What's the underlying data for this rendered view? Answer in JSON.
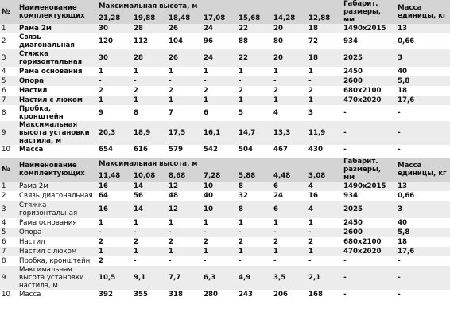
{
  "tables": [
    {
      "header": {
        "num": "№",
        "name": "Наименование комплектующих",
        "height": "Максимальная высота, м",
        "size": "Габарит. размеры, мм",
        "mass": "Масса единицы, кг"
      },
      "heights": [
        "21,28",
        "19,88",
        "18,48",
        "17,08",
        "15,68",
        "14,28",
        "12,88"
      ],
      "rows": [
        [
          "1",
          "Рама 2м",
          "30",
          "28",
          "26",
          "24",
          "22",
          "20",
          "18",
          "1490х2015",
          "13"
        ],
        [
          "2",
          "Связь диагональная",
          "120",
          "112",
          "104",
          "96",
          "88",
          "80",
          "72",
          "934",
          "0,66"
        ],
        [
          "3",
          "Стяжка горизонтальная",
          "30",
          "28",
          "26",
          "24",
          "22",
          "20",
          "18",
          "2025",
          "3"
        ],
        [
          "4",
          "Рама основания",
          "1",
          "1",
          "1",
          "1",
          "1",
          "1",
          "1",
          "2450",
          "40"
        ],
        [
          "5",
          "Опора",
          "-",
          "-",
          "-",
          "-",
          "-",
          "-",
          "-",
          "2600",
          "5,8"
        ],
        [
          "6",
          "Настил",
          "2",
          "2",
          "2",
          "2",
          "2",
          "2",
          "2",
          "680х2100",
          "18"
        ],
        [
          "7",
          "Настил с люком",
          "1",
          "1",
          "1",
          "1",
          "1",
          "1",
          "1",
          "470х2020",
          "17,6"
        ],
        [
          "8",
          "Пробка, кронштейн",
          "9",
          "8",
          "7",
          "6",
          "5",
          "4",
          "3",
          "-",
          "-"
        ],
        [
          "9",
          "Максимальная высота установки настила, м",
          "20,3",
          "18,9",
          "17,5",
          "16,1",
          "14,7",
          "13,3",
          "11,9",
          "-",
          "-"
        ],
        [
          "10",
          "Масса",
          "654",
          "616",
          "579",
          "542",
          "504",
          "467",
          "430",
          "-",
          "-"
        ]
      ]
    },
    {
      "header": {
        "num": "№",
        "name": "Наименование комплектующих",
        "height": "Максимальная высота, м",
        "size": "Габарит. размеры, мм",
        "mass": "Масса единицы, кг"
      },
      "heights": [
        "11,48",
        "10,08",
        "8,68",
        "7,28",
        "5,88",
        "4,48",
        "3,08"
      ],
      "rows": [
        [
          "1",
          "Рама 2м",
          "16",
          "14",
          "12",
          "10",
          "8",
          "6",
          "4",
          "1490х2015",
          "13"
        ],
        [
          "2",
          "Связь диагональная",
          "64",
          "56",
          "48",
          "40",
          "32",
          "24",
          "16",
          "934",
          "0,66"
        ],
        [
          "3",
          "Стяжка горизонтальная",
          "16",
          "14",
          "12",
          "10",
          "8",
          "6",
          "4",
          "2025",
          "3"
        ],
        [
          "4",
          "Рама основания",
          "1",
          "1",
          "1",
          "1",
          "1",
          "1",
          "1",
          "2450",
          "40"
        ],
        [
          "5",
          "Опора",
          "-",
          "-",
          "-",
          "-",
          "-",
          "-",
          "-",
          "2600",
          "5,8"
        ],
        [
          "6",
          "Настил",
          "2",
          "2",
          "2",
          "2",
          "2",
          "2",
          "2",
          "680х2100",
          "18"
        ],
        [
          "7",
          "Настил с люком",
          "1",
          "1",
          "1",
          "1",
          "1",
          "1",
          "1",
          "470х2020",
          "17,6"
        ],
        [
          "8",
          "Пробка, кронштейн",
          "2",
          "-",
          "-",
          "-",
          "-",
          "-",
          "-",
          "-",
          "-"
        ],
        [
          "9",
          "Максимальная высота установки настила, м",
          "10,5",
          "9,1",
          "7,7",
          "6,3",
          "4,9",
          "3,5",
          "2,1",
          "-",
          "-"
        ],
        [
          "10",
          "Масса",
          "392",
          "355",
          "318",
          "280",
          "243",
          "206",
          "168",
          "-",
          "-"
        ]
      ]
    }
  ]
}
